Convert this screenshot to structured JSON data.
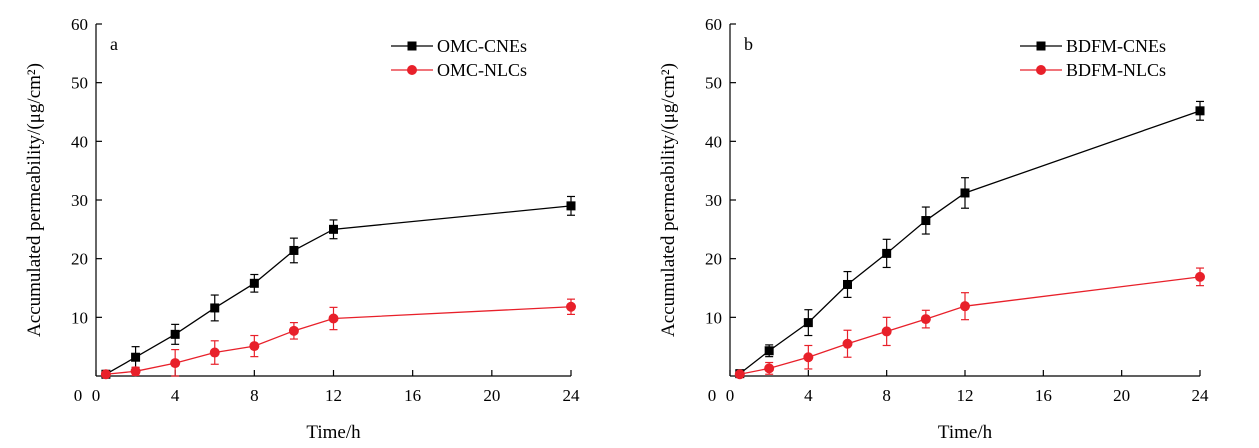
{
  "chart_data": [
    {
      "panel_label": "a",
      "type": "line",
      "xlabel": "Time/h",
      "ylabel": "Accumulated permeability/(μg/cm²)",
      "xlim": [
        0,
        24
      ],
      "ylim": [
        0,
        60
      ],
      "xticks": [
        0,
        4,
        8,
        12,
        16,
        20,
        24
      ],
      "yticks": [
        10,
        20,
        30,
        40,
        50,
        60
      ],
      "ytick_labels": [
        "10",
        "20",
        "30",
        "40",
        "50",
        "60"
      ],
      "origin_label": "0",
      "legend_position": "top-right",
      "grid": false,
      "series": [
        {
          "name": "OMC-CNEs",
          "color": "#000000",
          "marker": "square",
          "x": [
            0.5,
            2,
            4,
            6,
            8,
            10,
            12,
            24
          ],
          "y": [
            0.3,
            3.2,
            7.1,
            11.6,
            15.8,
            21.4,
            25.0,
            29.0
          ],
          "err": [
            0.3,
            1.8,
            1.7,
            2.2,
            1.5,
            2.1,
            1.6,
            1.6
          ]
        },
        {
          "name": "OMC-NLCs",
          "color": "#e8202a",
          "marker": "circle",
          "x": [
            0.5,
            2,
            4,
            6,
            8,
            10,
            12,
            24
          ],
          "y": [
            0.3,
            0.8,
            2.2,
            4.0,
            5.1,
            7.7,
            9.8,
            11.8
          ],
          "err": [
            0.3,
            0.7,
            2.3,
            2.0,
            1.8,
            1.4,
            1.9,
            1.3
          ]
        }
      ]
    },
    {
      "panel_label": "b",
      "type": "line",
      "xlabel": "Time/h",
      "ylabel": "Accumulated permeability/(μg/cm²)",
      "xlim": [
        0,
        24
      ],
      "ylim": [
        0,
        60
      ],
      "xticks": [
        0,
        4,
        8,
        12,
        16,
        20,
        24
      ],
      "yticks": [
        10,
        20,
        30,
        40,
        50,
        60
      ],
      "ytick_labels": [
        "10",
        "20",
        "30",
        "40",
        "50",
        "60"
      ],
      "origin_label": "0",
      "legend_position": "top-right",
      "grid": false,
      "series": [
        {
          "name": "BDFM-CNEs",
          "color": "#000000",
          "marker": "square",
          "x": [
            0.5,
            2,
            4,
            6,
            8,
            10,
            12,
            24
          ],
          "y": [
            0.4,
            4.3,
            9.1,
            15.6,
            20.9,
            26.5,
            31.2,
            45.2
          ],
          "err": [
            0.3,
            1.0,
            2.2,
            2.2,
            2.4,
            2.3,
            2.6,
            1.6
          ]
        },
        {
          "name": "BDFM-NLCs",
          "color": "#e8202a",
          "marker": "circle",
          "x": [
            0.5,
            2,
            4,
            6,
            8,
            10,
            12,
            24
          ],
          "y": [
            0.3,
            1.3,
            3.2,
            5.5,
            7.6,
            9.7,
            11.9,
            16.9
          ],
          "err": [
            0.3,
            1.0,
            2.0,
            2.3,
            2.4,
            1.5,
            2.3,
            1.5
          ]
        }
      ]
    }
  ]
}
